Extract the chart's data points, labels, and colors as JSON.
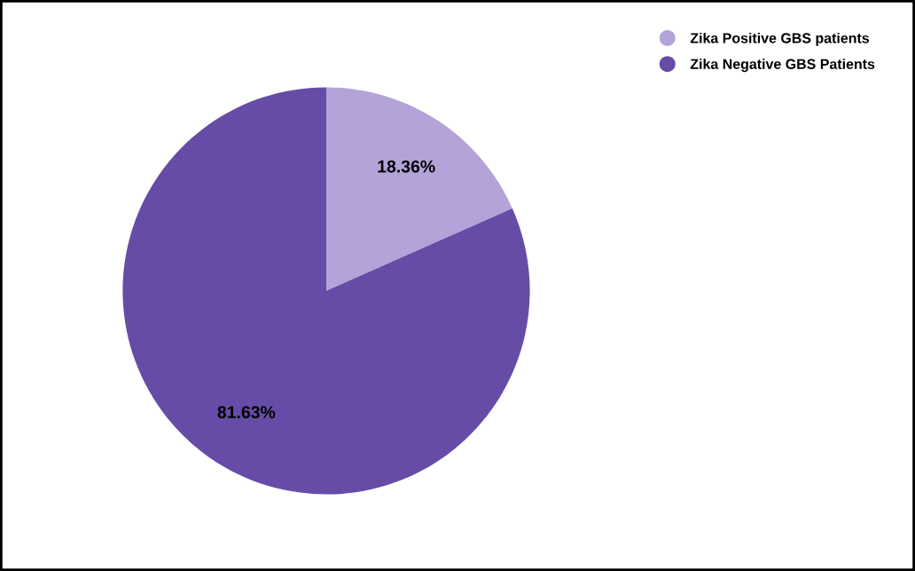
{
  "chart_data": {
    "type": "pie",
    "categories": [
      "Zika Positive GBS patients",
      "Zika Negative GBS Patients"
    ],
    "values": [
      18.36,
      81.63
    ],
    "colors": [
      "#b3a3d9",
      "#664ca6"
    ],
    "value_labels": [
      "18.36%",
      "81.63%"
    ],
    "legend": "top right"
  }
}
